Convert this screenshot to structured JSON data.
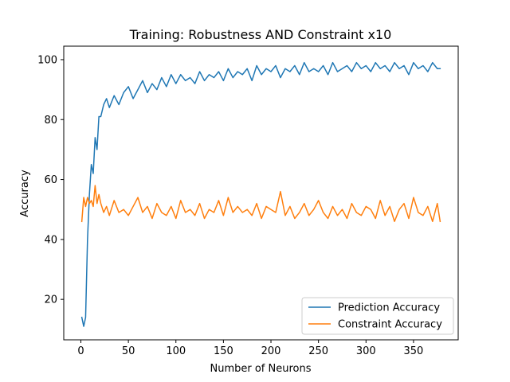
{
  "chart_data": {
    "type": "line",
    "title": "Training: Robustness AND Constraint x10",
    "xlabel": "Number of Neurons",
    "ylabel": "Accuracy",
    "xlim": [
      -18,
      397
    ],
    "ylim": [
      6.5,
      104.5
    ],
    "xticks": [
      0,
      50,
      100,
      150,
      200,
      250,
      300,
      350
    ],
    "yticks": [
      20,
      40,
      60,
      80,
      100
    ],
    "grid": false,
    "legend_position": "lower-right",
    "series": [
      {
        "name": "Prediction Accuracy",
        "color": "#1f77b4",
        "x": [
          1,
          3,
          5,
          7,
          9,
          11,
          13,
          15,
          17,
          19,
          21,
          24,
          27,
          30,
          35,
          40,
          45,
          50,
          55,
          60,
          65,
          70,
          75,
          80,
          85,
          90,
          95,
          100,
          105,
          110,
          115,
          120,
          125,
          130,
          135,
          140,
          145,
          150,
          155,
          160,
          165,
          170,
          175,
          180,
          185,
          190,
          195,
          200,
          205,
          210,
          215,
          220,
          225,
          230,
          235,
          240,
          245,
          250,
          255,
          260,
          265,
          270,
          275,
          280,
          285,
          290,
          295,
          300,
          305,
          310,
          315,
          320,
          325,
          330,
          335,
          340,
          345,
          350,
          355,
          360,
          365,
          370,
          375,
          378
        ],
        "y": [
          14,
          11,
          14,
          40,
          55,
          65,
          62,
          74,
          70,
          81,
          81,
          85,
          87,
          84,
          88,
          85,
          89,
          91,
          87,
          90,
          93,
          89,
          92,
          90,
          94,
          91,
          95,
          92,
          95,
          93,
          94,
          92,
          96,
          93,
          95,
          94,
          96,
          93,
          97,
          94,
          96,
          95,
          97,
          93,
          98,
          95,
          97,
          96,
          98,
          94,
          97,
          96,
          98,
          95,
          99,
          96,
          97,
          96,
          98,
          95,
          99,
          96,
          97,
          98,
          96,
          99,
          97,
          98,
          96,
          99,
          97,
          98,
          96,
          99,
          97,
          98,
          95,
          99,
          97,
          98,
          96,
          99,
          97,
          97
        ]
      },
      {
        "name": "Constraint Accuracy",
        "color": "#ff7f0e",
        "x": [
          1,
          3,
          5,
          7,
          9,
          11,
          13,
          15,
          17,
          19,
          21,
          24,
          27,
          30,
          35,
          40,
          45,
          50,
          55,
          60,
          65,
          70,
          75,
          80,
          85,
          90,
          95,
          100,
          105,
          110,
          115,
          120,
          125,
          130,
          135,
          140,
          145,
          150,
          155,
          160,
          165,
          170,
          175,
          180,
          185,
          190,
          195,
          200,
          205,
          210,
          215,
          220,
          225,
          230,
          235,
          240,
          245,
          250,
          255,
          260,
          265,
          270,
          275,
          280,
          285,
          290,
          295,
          300,
          305,
          310,
          315,
          320,
          325,
          330,
          335,
          340,
          345,
          350,
          355,
          360,
          365,
          370,
          375,
          378
        ],
        "y": [
          46,
          54,
          51,
          54,
          52,
          53,
          51,
          58,
          52,
          55,
          52,
          49,
          51,
          48,
          53,
          49,
          50,
          48,
          51,
          54,
          49,
          51,
          47,
          52,
          49,
          48,
          51,
          47,
          53,
          49,
          50,
          48,
          52,
          47,
          50,
          49,
          53,
          48,
          54,
          49,
          51,
          49,
          50,
          48,
          52,
          47,
          51,
          50,
          49,
          56,
          48,
          51,
          47,
          49,
          52,
          48,
          50,
          53,
          49,
          47,
          51,
          48,
          50,
          47,
          52,
          49,
          48,
          51,
          50,
          47,
          53,
          48,
          51,
          46,
          50,
          52,
          47,
          54,
          49,
          48,
          51,
          46,
          52,
          46
        ]
      }
    ]
  }
}
